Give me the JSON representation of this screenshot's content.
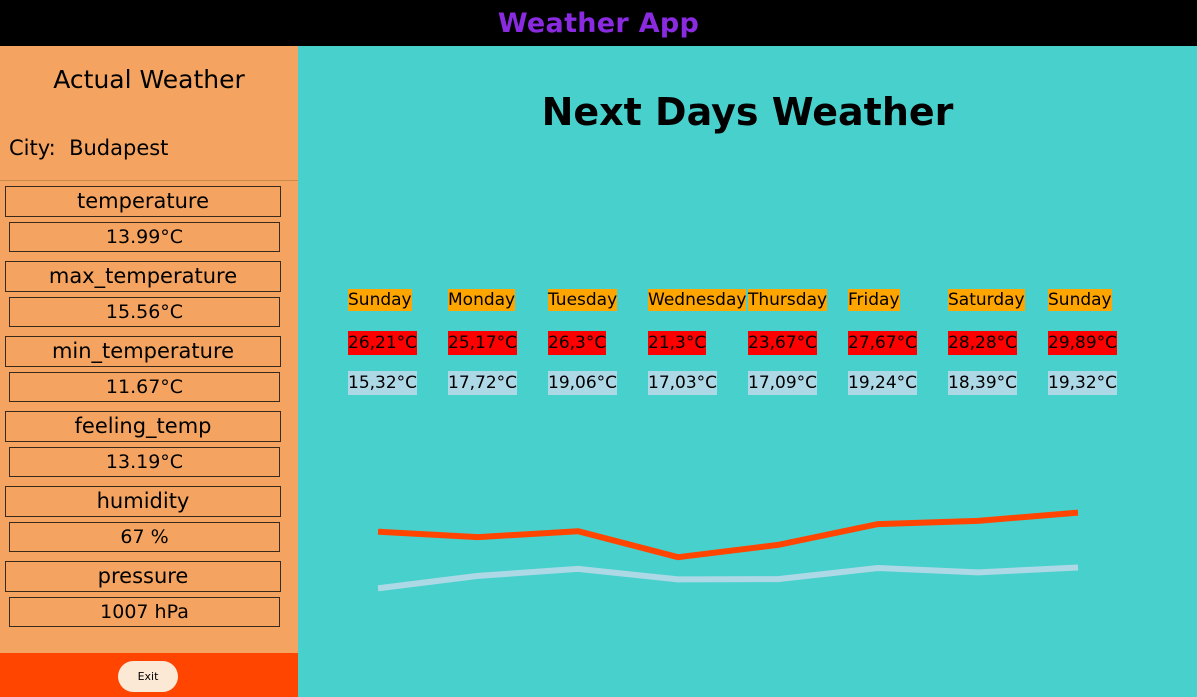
{
  "app": {
    "title": "Weather App"
  },
  "sidebar": {
    "title": "Actual Weather",
    "city_label": "City:",
    "city": "Budapest",
    "metrics": [
      {
        "label": "temperature",
        "value": "13.99°C"
      },
      {
        "label": "max_temperature",
        "value": "15.56°C"
      },
      {
        "label": "min_temperature",
        "value": "11.67°C"
      },
      {
        "label": "feeling_temp",
        "value": "13.19°C"
      },
      {
        "label": "humidity",
        "value": "67 %"
      },
      {
        "label": "pressure",
        "value": "1007 hPa"
      }
    ],
    "exit_label": "Exit"
  },
  "main": {
    "title": "Next Days Weather",
    "days": [
      {
        "name": "Sunday",
        "max": "26,21°C",
        "min": "15,32°C"
      },
      {
        "name": "Monday",
        "max": "25,17°C",
        "min": "17,72°C"
      },
      {
        "name": "Tuesday",
        "max": "26,3°C",
        "min": "19,06°C"
      },
      {
        "name": "Wednesday",
        "max": "21,3°C",
        "min": "17,03°C"
      },
      {
        "name": "Thursday",
        "max": "23,67°C",
        "min": "17,09°C"
      },
      {
        "name": "Friday",
        "max": "27,67°C",
        "min": "19,24°C"
      },
      {
        "name": "Saturday",
        "max": "28,28°C",
        "min": "18,39°C"
      },
      {
        "name": "Sunday",
        "max": "29,89°C",
        "min": "19,32°C"
      }
    ]
  },
  "chart_data": {
    "type": "line",
    "x": [
      "Sunday",
      "Monday",
      "Tuesday",
      "Wednesday",
      "Thursday",
      "Friday",
      "Saturday",
      "Sunday"
    ],
    "series": [
      {
        "values": [
          26.21,
          25.17,
          26.3,
          21.3,
          23.67,
          27.67,
          28.28,
          29.89
        ],
        "color": "#ff4500"
      },
      {
        "values": [
          15.32,
          17.72,
          19.06,
          17.03,
          17.09,
          19.24,
          18.39,
          19.32
        ],
        "color": "#add8e6"
      }
    ],
    "ylim": [
      10,
      35
    ],
    "grid": false,
    "colors": {
      "max_line": "#ff4500",
      "min_line": "#add8e6"
    }
  }
}
